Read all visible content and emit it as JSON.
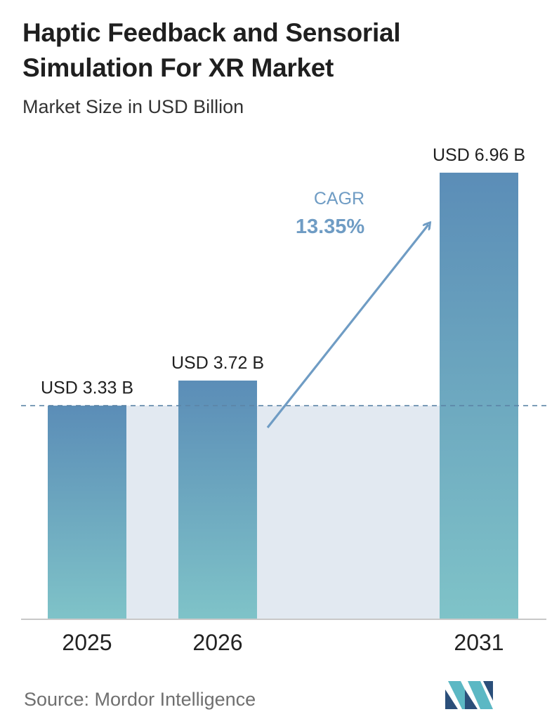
{
  "header": {
    "title": "Haptic Feedback and Sensorial Simulation For XR Market",
    "subtitle": "Market Size in USD Billion"
  },
  "chart_data": {
    "type": "bar",
    "title": "Haptic Feedback and Sensorial Simulation For XR Market",
    "subtitle": "Market Size in USD Billion",
    "categories": [
      "2025",
      "2026",
      "2031"
    ],
    "values": [
      3.33,
      3.72,
      6.96
    ],
    "value_labels": [
      "USD 3.33 B",
      "USD 3.72 B",
      "USD 6.96 B"
    ],
    "ylim": [
      0,
      7.2
    ],
    "grid": false,
    "legend": "none",
    "annotation": {
      "label": "CAGR",
      "value": "13.35%"
    },
    "colors": {
      "bar_top": "#5b8db7",
      "bar_bottom": "#7fc3c8",
      "band": "#e2e9f1",
      "dashed_line": "#5b84a6",
      "arrow": "#6f9cc4",
      "axis": "#c8c8c8"
    }
  },
  "footer": {
    "source": "Source: Mordor Intelligence",
    "logo_icon": "mordor-intelligence-logo-icon"
  }
}
